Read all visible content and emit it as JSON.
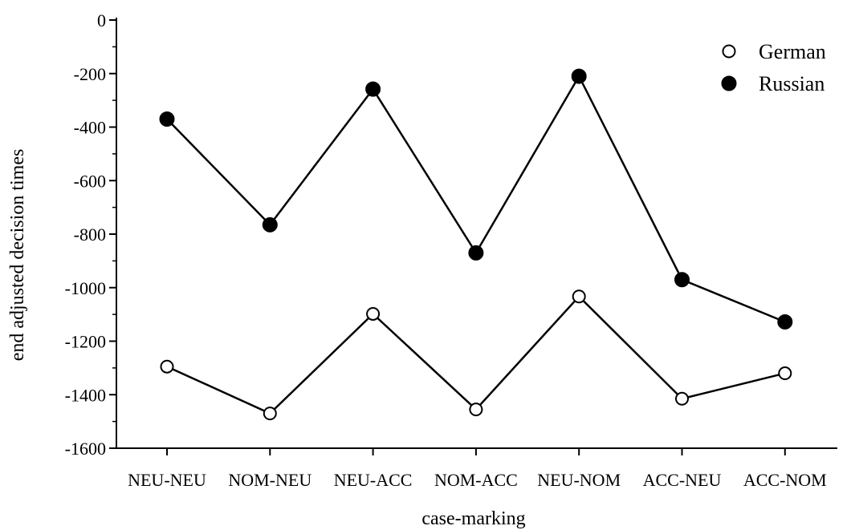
{
  "chart_data": {
    "type": "line",
    "title": "",
    "xlabel": "case-marking",
    "ylabel": "end adjusted decision times",
    "categories": [
      "NEU-NEU",
      "NOM-NEU",
      "NEU-ACC",
      "NOM-ACC",
      "NEU-NOM",
      "ACC-NEU",
      "ACC-NOM"
    ],
    "ylim": [
      -1600,
      0
    ],
    "yticks": [
      0,
      -200,
      -400,
      -600,
      -800,
      -1000,
      -1200,
      -1400,
      -1600
    ],
    "legend_position": "top-right",
    "grid": false,
    "series": [
      {
        "name": "German",
        "marker": "open-circle",
        "color": "#000000",
        "values": [
          -1295,
          -1470,
          -1098,
          -1455,
          -1033,
          -1415,
          -1320
        ]
      },
      {
        "name": "Russian",
        "marker": "filled-circle",
        "color": "#000000",
        "values": [
          -370,
          -765,
          -258,
          -870,
          -210,
          -970,
          -1128
        ]
      }
    ]
  }
}
